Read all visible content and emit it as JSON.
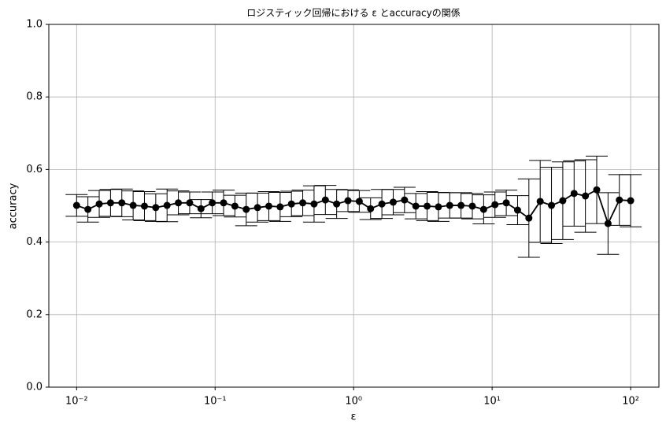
{
  "chart_data": {
    "type": "errorbar-line",
    "title": "ロジスティック回帰における ε とaccuracyの関係",
    "x_label": "ε",
    "y_label": "accuracy",
    "log_x": true,
    "grid": true,
    "color": "#000000",
    "xlim": [
      0.0063,
      160
    ],
    "xticks": [
      {
        "value": 0.01,
        "label": "10⁻²"
      },
      {
        "value": 0.1,
        "label": "10⁻¹"
      },
      {
        "value": 1,
        "label": "10⁰"
      },
      {
        "value": 10,
        "label": "10¹"
      },
      {
        "value": 100,
        "label": "10²"
      }
    ],
    "ylim": [
      0,
      1
    ],
    "yticks": [
      {
        "value": 0,
        "label": "0.0"
      },
      0.2,
      0.4,
      0.6,
      0.8,
      {
        "value": 1,
        "label": "1.0"
      }
    ],
    "x": [
      0.01,
      0.012068,
      0.014563,
      0.017575,
      0.02121,
      0.025595,
      0.030888,
      0.037276,
      0.044984,
      0.054287,
      0.065513,
      0.07906,
      0.09541,
      0.11514,
      0.13895,
      0.16768,
      0.20236,
      0.24421,
      0.29471,
      0.35565,
      0.42919,
      0.51795,
      0.62506,
      0.75431,
      0.9103,
      1.0985,
      1.3257,
      1.5999,
      1.9307,
      2.33,
      2.8118,
      3.3932,
      4.0949,
      4.9417,
      5.9636,
      7.1969,
      8.6851,
      10.481,
      12.649,
      15.264,
      18.421,
      22.23,
      26.827,
      32.375,
      39.069,
      47.149,
      56.899,
      68.665,
      82.864,
      100
    ],
    "values": [
      0.501,
      0.49,
      0.505,
      0.508,
      0.508,
      0.501,
      0.499,
      0.495,
      0.501,
      0.508,
      0.508,
      0.492,
      0.508,
      0.508,
      0.499,
      0.49,
      0.495,
      0.499,
      0.497,
      0.505,
      0.508,
      0.505,
      0.516,
      0.505,
      0.514,
      0.512,
      0.492,
      0.505,
      0.51,
      0.516,
      0.499,
      0.499,
      0.497,
      0.501,
      0.501,
      0.499,
      0.49,
      0.503,
      0.508,
      0.488,
      0.466,
      0.512,
      0.501,
      0.514,
      0.534,
      0.527,
      0.544,
      0.451,
      0.516,
      0.514
    ],
    "errors": [
      0.03,
      0.035,
      0.037,
      0.037,
      0.038,
      0.04,
      0.04,
      0.038,
      0.045,
      0.033,
      0.03,
      0.025,
      0.03,
      0.035,
      0.03,
      0.045,
      0.04,
      0.04,
      0.04,
      0.035,
      0.035,
      0.05,
      0.04,
      0.04,
      0.03,
      0.03,
      0.03,
      0.04,
      0.035,
      0.035,
      0.035,
      0.04,
      0.04,
      0.035,
      0.035,
      0.035,
      0.04,
      0.035,
      0.035,
      0.04,
      0.108,
      0.113,
      0.105,
      0.107,
      0.09,
      0.1,
      0.093,
      0.085,
      0.07,
      0.072
    ]
  }
}
